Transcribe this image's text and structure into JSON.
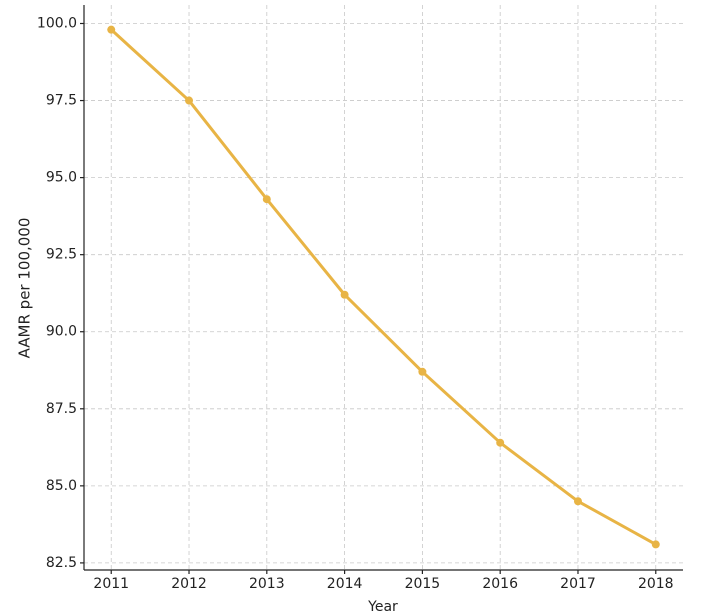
{
  "chart_data": {
    "type": "line",
    "x": [
      2011,
      2012,
      2013,
      2014,
      2015,
      2016,
      2017,
      2018
    ],
    "values": [
      99.8,
      97.5,
      94.3,
      91.2,
      88.7,
      86.4,
      84.5,
      83.1
    ],
    "color": "#e8b445",
    "xlabel": "Year",
    "ylabel": "AAMR per 100,000",
    "xlim": [
      2010.65,
      2018.35
    ],
    "xticks": [
      2011,
      2012,
      2013,
      2014,
      2015,
      2016,
      2017,
      2018
    ],
    "ylim": [
      82.27,
      100.6
    ],
    "yticks": [
      82.5,
      {
        "value": 85,
        "label": "85.0"
      },
      87.5,
      {
        "value": 90,
        "label": "90.0"
      },
      92.5,
      {
        "value": 95,
        "label": "95.0"
      },
      97.5,
      {
        "value": 100,
        "label": "100.0"
      }
    ],
    "grid": true
  }
}
